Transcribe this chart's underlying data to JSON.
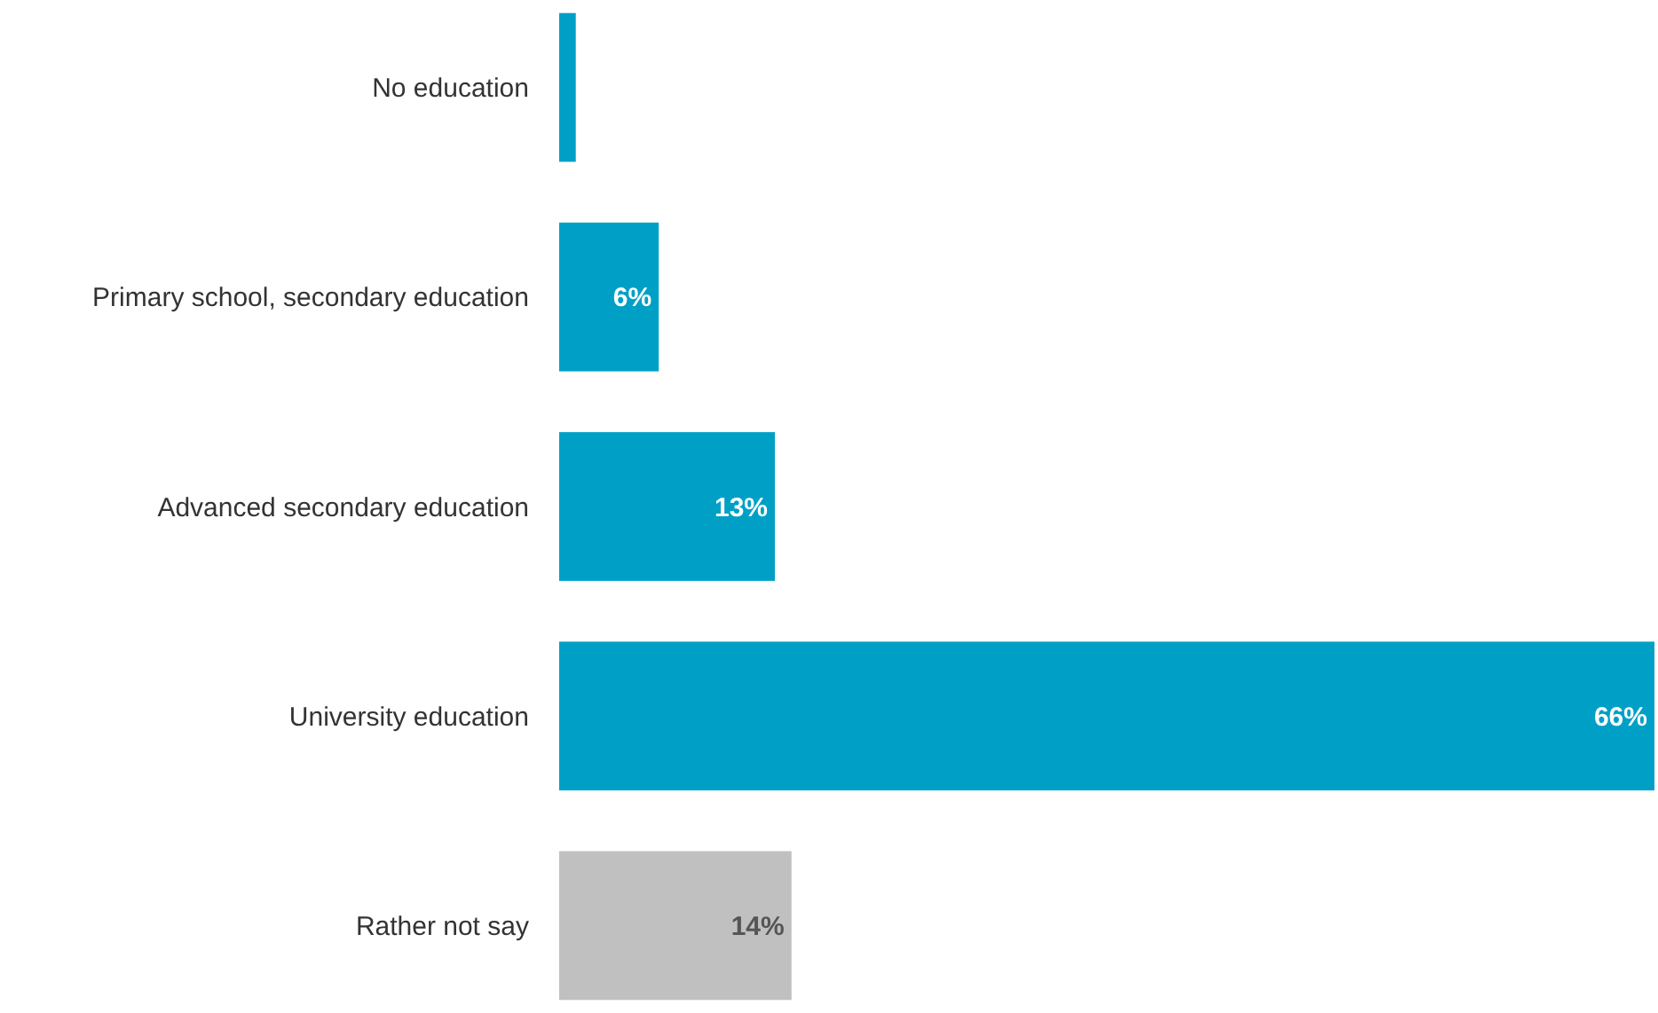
{
  "chart_data": {
    "type": "bar",
    "orientation": "horizontal",
    "categories": [
      "No education",
      "Primary school, secondary education",
      "Advanced secondary education",
      "University education",
      "Rather not say"
    ],
    "values": [
      1,
      6,
      13,
      66,
      14
    ],
    "colors": [
      "#00a0c6",
      "#00a0c6",
      "#00a0c6",
      "#00a0c6",
      "#c0c0c0"
    ],
    "value_labels": [
      null,
      "6%",
      "13%",
      "66%",
      "14%"
    ]
  }
}
